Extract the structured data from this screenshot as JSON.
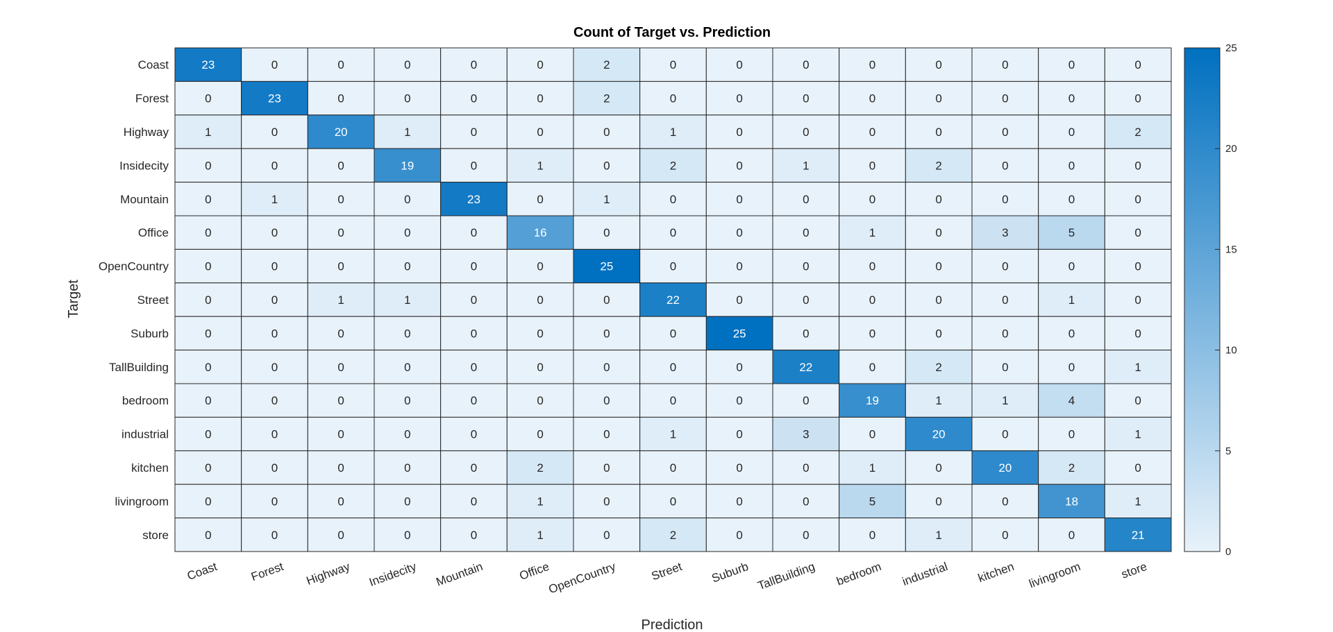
{
  "chart_data": {
    "type": "heatmap",
    "title": "Count of Target vs. Prediction",
    "xlabel": "Prediction",
    "ylabel": "Target",
    "x_categories": [
      "Coast",
      "Forest",
      "Highway",
      "Insidecity",
      "Mountain",
      "Office",
      "OpenCountry",
      "Street",
      "Suburb",
      "TallBuilding",
      "bedroom",
      "industrial",
      "kitchen",
      "livingroom",
      "store"
    ],
    "y_categories": [
      "Coast",
      "Forest",
      "Highway",
      "Insidecity",
      "Mountain",
      "Office",
      "OpenCountry",
      "Street",
      "Suburb",
      "TallBuilding",
      "bedroom",
      "industrial",
      "kitchen",
      "livingroom",
      "store"
    ],
    "values": [
      [
        23,
        0,
        0,
        0,
        0,
        0,
        2,
        0,
        0,
        0,
        0,
        0,
        0,
        0,
        0
      ],
      [
        0,
        23,
        0,
        0,
        0,
        0,
        2,
        0,
        0,
        0,
        0,
        0,
        0,
        0,
        0
      ],
      [
        1,
        0,
        20,
        1,
        0,
        0,
        0,
        1,
        0,
        0,
        0,
        0,
        0,
        0,
        2
      ],
      [
        0,
        0,
        0,
        19,
        0,
        1,
        0,
        2,
        0,
        1,
        0,
        2,
        0,
        0,
        0
      ],
      [
        0,
        1,
        0,
        0,
        23,
        0,
        1,
        0,
        0,
        0,
        0,
        0,
        0,
        0,
        0
      ],
      [
        0,
        0,
        0,
        0,
        0,
        16,
        0,
        0,
        0,
        0,
        1,
        0,
        3,
        5,
        0
      ],
      [
        0,
        0,
        0,
        0,
        0,
        0,
        25,
        0,
        0,
        0,
        0,
        0,
        0,
        0,
        0
      ],
      [
        0,
        0,
        1,
        1,
        0,
        0,
        0,
        22,
        0,
        0,
        0,
        0,
        0,
        1,
        0
      ],
      [
        0,
        0,
        0,
        0,
        0,
        0,
        0,
        0,
        25,
        0,
        0,
        0,
        0,
        0,
        0
      ],
      [
        0,
        0,
        0,
        0,
        0,
        0,
        0,
        0,
        0,
        22,
        0,
        2,
        0,
        0,
        1
      ],
      [
        0,
        0,
        0,
        0,
        0,
        0,
        0,
        0,
        0,
        0,
        19,
        1,
        1,
        4,
        0
      ],
      [
        0,
        0,
        0,
        0,
        0,
        0,
        0,
        1,
        0,
        3,
        0,
        20,
        0,
        0,
        1
      ],
      [
        0,
        0,
        0,
        0,
        0,
        2,
        0,
        0,
        0,
        0,
        1,
        0,
        20,
        2,
        0
      ],
      [
        0,
        0,
        0,
        0,
        0,
        1,
        0,
        0,
        0,
        0,
        5,
        0,
        0,
        18,
        1
      ],
      [
        0,
        0,
        0,
        0,
        0,
        1,
        0,
        2,
        0,
        0,
        0,
        1,
        0,
        0,
        21
      ]
    ],
    "colorbar": {
      "min": 0,
      "max": 25,
      "ticks": [
        0,
        5,
        10,
        15,
        20,
        25
      ]
    },
    "colors": {
      "low": "#e8f2fa",
      "high": "#0070c0",
      "grid": "#262626",
      "dark_text": "#262626",
      "light_text": "#ffffff"
    }
  }
}
